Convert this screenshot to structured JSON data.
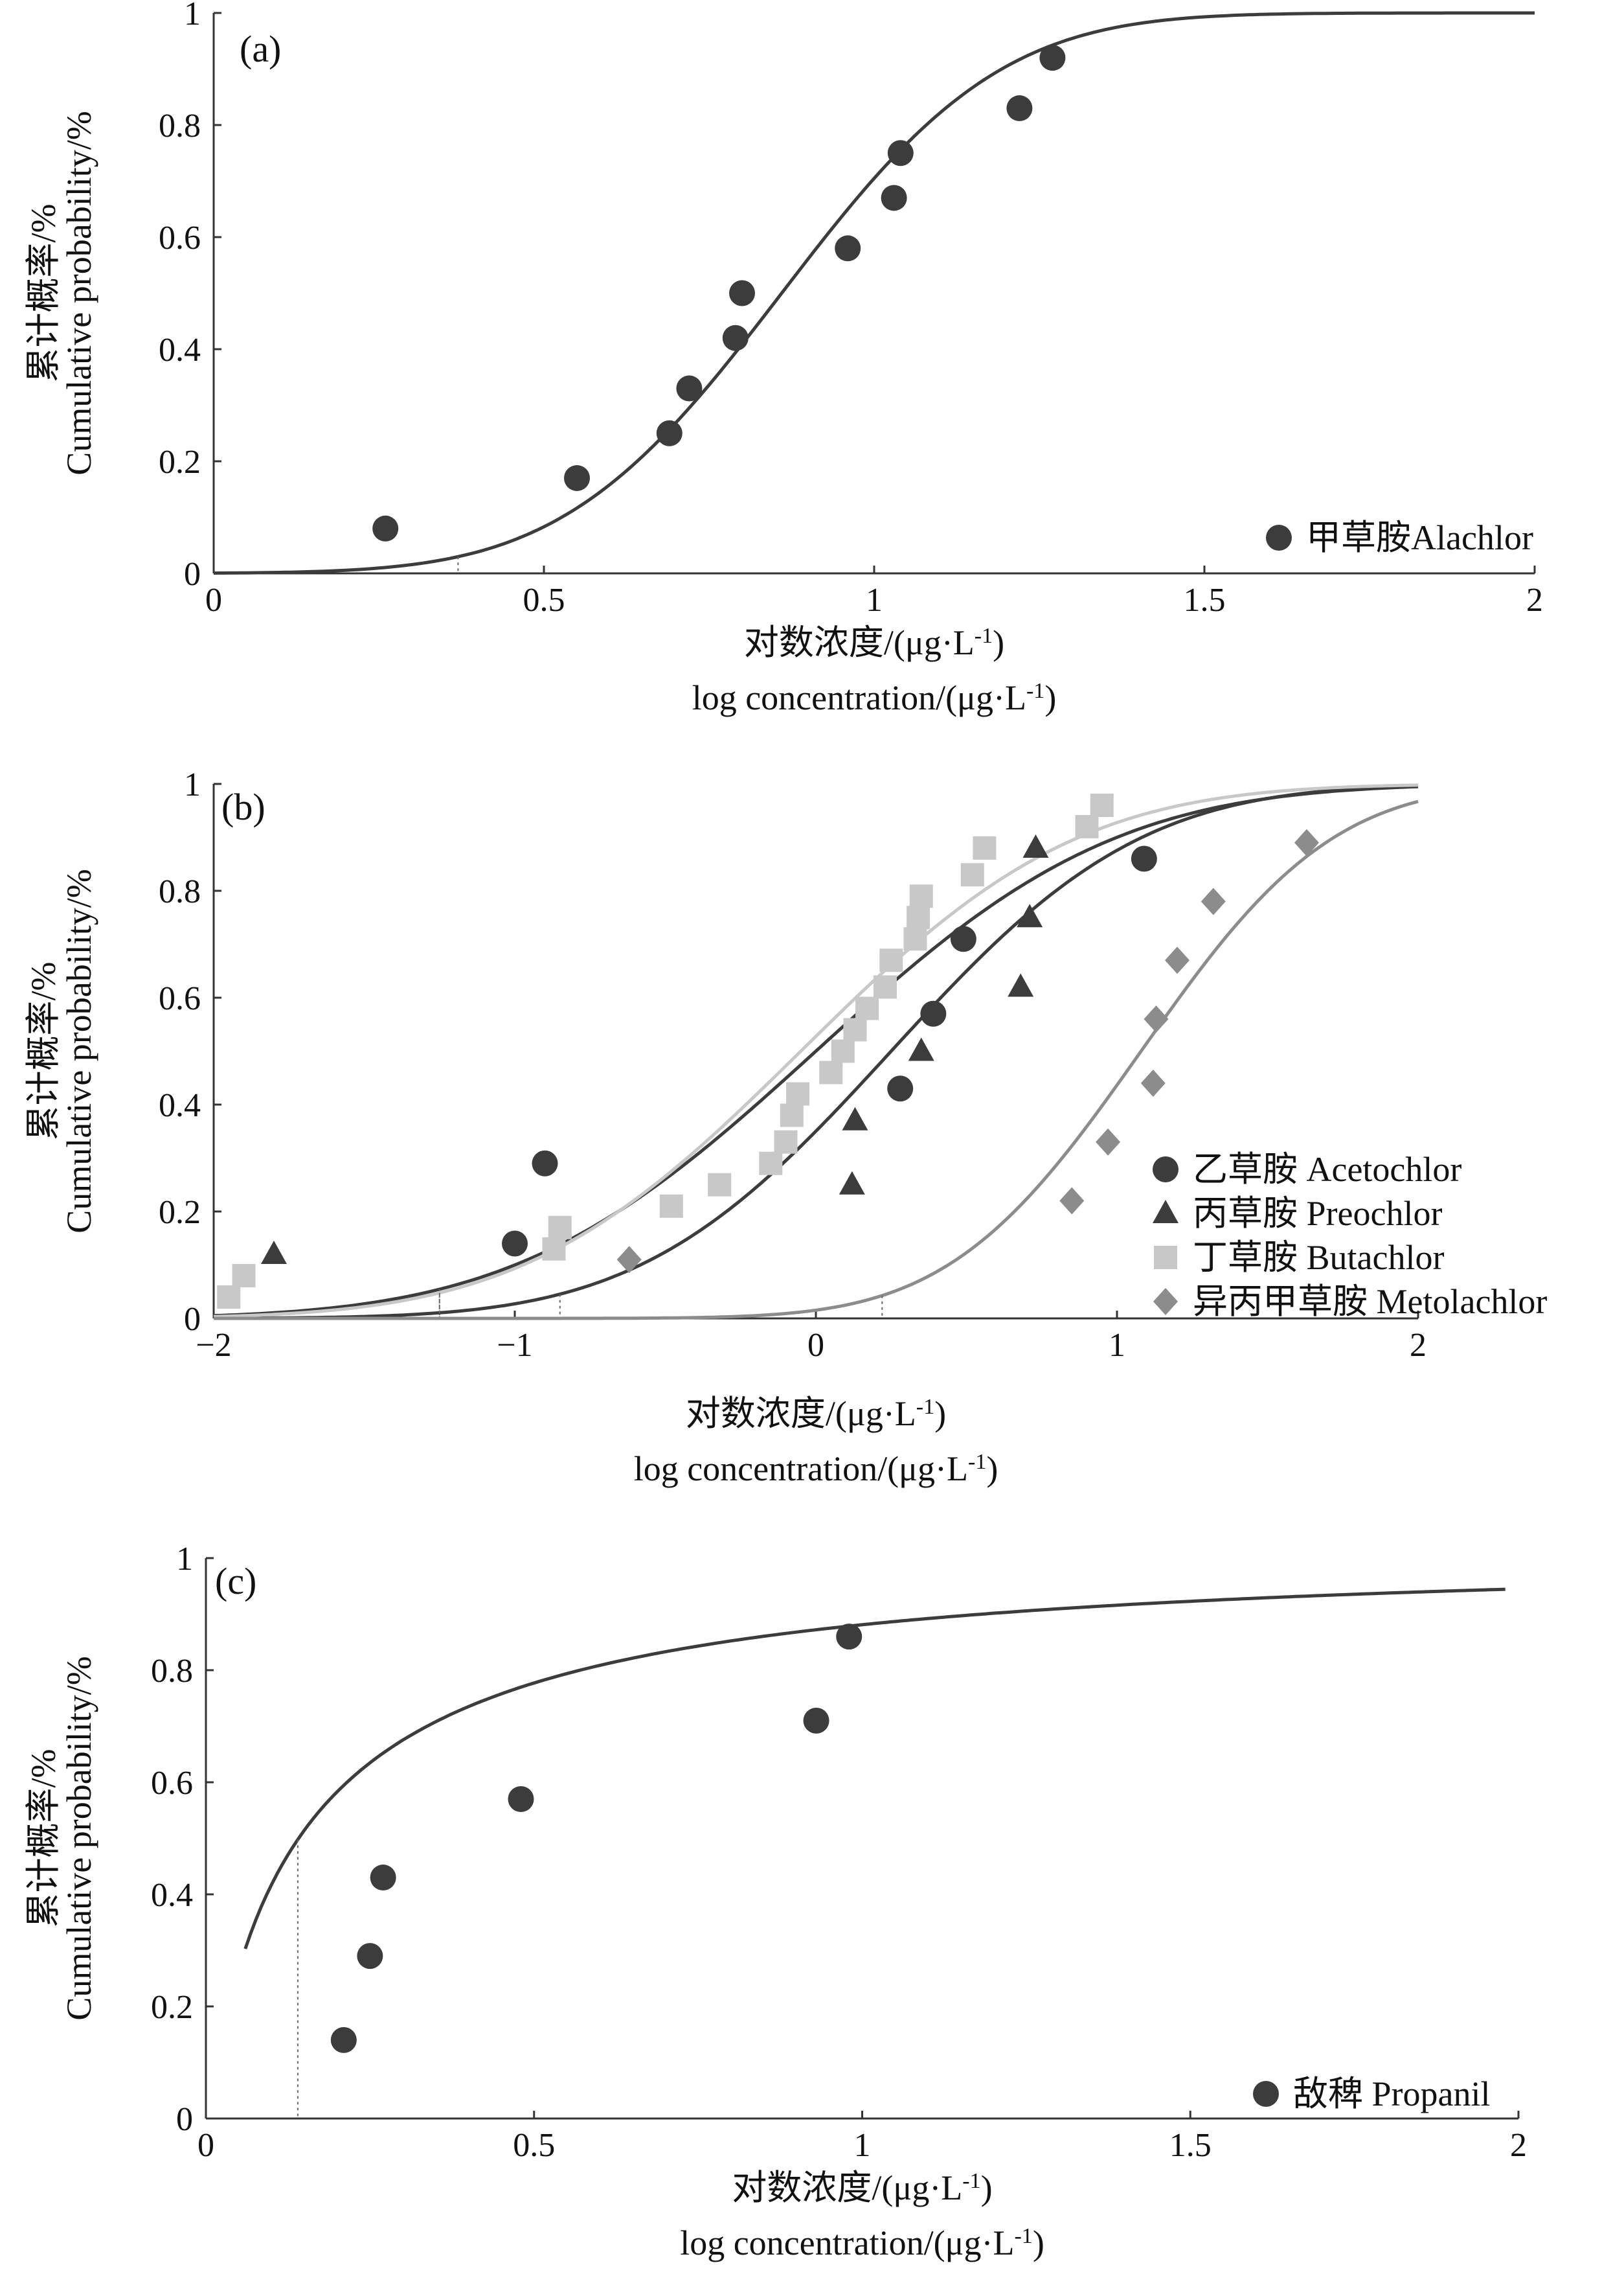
{
  "chart_data": [
    {
      "type": "scatter",
      "panel_label": "(a)",
      "xlabel_cn": "对数浓度/(μg·L",
      "xlabel_en": "log concentration/(μg·L",
      "unit_sup": "-1",
      "unit_close": ")",
      "ylabel_cn": "累计概率/%",
      "ylabel_en": "Cumulative probability/%",
      "xlim": [
        0,
        2
      ],
      "ylim": [
        0,
        1
      ],
      "xticks": [
        "0",
        "0.5",
        "1",
        "1.5",
        "2"
      ],
      "yticks": [
        "0",
        "0.2",
        "0.4",
        "0.6",
        "0.8",
        "1"
      ],
      "xtick_values": [
        0,
        0.5,
        1,
        1.5,
        2
      ],
      "ytick_values": [
        0,
        0.2,
        0.4,
        0.6,
        0.8,
        1
      ],
      "series": [
        {
          "name": "甲草胺Alachlor",
          "marker": "circle",
          "color": "#3c3c3c",
          "points": [
            [
              0.26,
              0.08
            ],
            [
              0.55,
              0.17
            ],
            [
              0.69,
              0.25
            ],
            [
              0.72,
              0.33
            ],
            [
              0.79,
              0.42
            ],
            [
              0.8,
              0.5
            ],
            [
              0.96,
              0.58
            ],
            [
              1.03,
              0.67
            ],
            [
              1.04,
              0.75
            ],
            [
              1.22,
              0.83
            ],
            [
              1.27,
              0.92
            ]
          ],
          "curve": {
            "mu": 0.86,
            "sigma": 0.26,
            "x_range": [
              0,
              2
            ]
          },
          "hc5_x": 0.37
        }
      ]
    },
    {
      "type": "scatter",
      "panel_label": "(b)",
      "xlabel_cn": "对数浓度/(μg·L",
      "xlabel_en": "log concentration/(μg·L",
      "unit_sup": "-1",
      "unit_close": ")",
      "ylabel_cn": "累计概率/%",
      "ylabel_en": "Cumulative probability/%",
      "xlim": [
        -2,
        2
      ],
      "ylim": [
        0,
        1
      ],
      "xticks": [
        "−2",
        "−1",
        "0",
        "1",
        "2"
      ],
      "yticks": [
        "0",
        "0.2",
        "0.4",
        "0.6",
        "0.8",
        "1"
      ],
      "xtick_values": [
        -2,
        -1,
        0,
        1,
        2
      ],
      "ytick_values": [
        0,
        0.2,
        0.4,
        0.6,
        0.8,
        1
      ],
      "series": [
        {
          "name": "乙草胺 Acetochlor",
          "marker": "circle",
          "color": "#3c3c3c",
          "points": [
            [
              -1.0,
              0.14
            ],
            [
              -0.9,
              0.29
            ],
            [
              0.28,
              0.43
            ],
            [
              0.39,
              0.57
            ],
            [
              0.49,
              0.71
            ],
            [
              1.09,
              0.86
            ]
          ],
          "curve": {
            "mu": 0.0,
            "sigma": 0.78,
            "x_range": [
              -2,
              2
            ]
          },
          "hc5_x": -1.25
        },
        {
          "name": "丙草胺 Preochlor",
          "marker": "triangle",
          "color": "#3c3c3c",
          "points": [
            [
              -1.8,
              0.12
            ],
            [
              0.12,
              0.25
            ],
            [
              0.13,
              0.37
            ],
            [
              0.35,
              0.5
            ],
            [
              0.68,
              0.62
            ],
            [
              0.71,
              0.75
            ],
            [
              0.73,
              0.88
            ]
          ],
          "curve": {
            "mu": 0.25,
            "sigma": 0.65,
            "x_range": [
              -2,
              2
            ]
          },
          "hc5_x": -0.85
        },
        {
          "name": "丁草胺 Butachlor",
          "marker": "square",
          "color": "#c8c8c8",
          "points": [
            [
              -1.95,
              0.04
            ],
            [
              -1.9,
              0.08
            ],
            [
              -0.87,
              0.13
            ],
            [
              -0.85,
              0.17
            ],
            [
              -0.48,
              0.21
            ],
            [
              -0.32,
              0.25
            ],
            [
              -0.15,
              0.29
            ],
            [
              -0.1,
              0.33
            ],
            [
              -0.08,
              0.38
            ],
            [
              -0.06,
              0.42
            ],
            [
              0.05,
              0.46
            ],
            [
              0.09,
              0.5
            ],
            [
              0.13,
              0.54
            ],
            [
              0.17,
              0.58
            ],
            [
              0.23,
              0.62
            ],
            [
              0.25,
              0.67
            ],
            [
              0.33,
              0.71
            ],
            [
              0.34,
              0.75
            ],
            [
              0.35,
              0.79
            ],
            [
              0.52,
              0.83
            ],
            [
              0.56,
              0.88
            ],
            [
              0.9,
              0.92
            ],
            [
              0.95,
              0.96
            ]
          ],
          "curve": {
            "mu": -0.05,
            "sigma": 0.72,
            "x_range": [
              -2,
              2
            ]
          },
          "hc5_x": -1.25
        },
        {
          "name": "异丙甲草胺 Metolachlor",
          "marker": "diamond",
          "color": "#8c8c8c",
          "points": [
            [
              -0.62,
              0.11
            ],
            [
              0.85,
              0.22
            ],
            [
              0.97,
              0.33
            ],
            [
              1.12,
              0.44
            ],
            [
              1.13,
              0.56
            ],
            [
              1.2,
              0.67
            ],
            [
              1.32,
              0.78
            ],
            [
              1.63,
              0.89
            ]
          ],
          "curve": {
            "mu": 1.08,
            "sigma": 0.5,
            "x_range": [
              -2,
              2
            ]
          },
          "hc5_x": 0.22
        }
      ]
    },
    {
      "type": "scatter",
      "panel_label": "(c)",
      "xlabel_cn": "对数浓度/(μg·L",
      "xlabel_en": "log concentration/(μg·L",
      "unit_sup": "-1",
      "unit_close": ")",
      "ylabel_cn": "累计概率/%",
      "ylabel_en": "Cumulative probability/%",
      "xlim": [
        0,
        2
      ],
      "ylim": [
        0,
        1
      ],
      "xticks": [
        "0",
        "0.5",
        "1",
        "1.5",
        "2"
      ],
      "yticks": [
        "0",
        "0.2",
        "0.4",
        "0.6",
        "0.8",
        "1"
      ],
      "xtick_values": [
        0,
        0.5,
        1,
        1.5,
        2
      ],
      "ytick_values": [
        0,
        0.2,
        0.4,
        0.6,
        0.8,
        1
      ],
      "series": [
        {
          "name": "敌稗 Propanil",
          "marker": "circle",
          "color": "#3c3c3c",
          "points": [
            [
              0.21,
              0.14
            ],
            [
              0.25,
              0.29
            ],
            [
              0.27,
              0.43
            ],
            [
              0.48,
              0.57
            ],
            [
              0.93,
              0.71
            ],
            [
              0.98,
              0.86
            ]
          ],
          "curve": {
            "type": "lognormal",
            "mu": -0.85,
            "sigma": 0.72,
            "x_range": [
              0.06,
              1.98
            ]
          },
          "hc5_x": 0.14
        }
      ]
    }
  ]
}
